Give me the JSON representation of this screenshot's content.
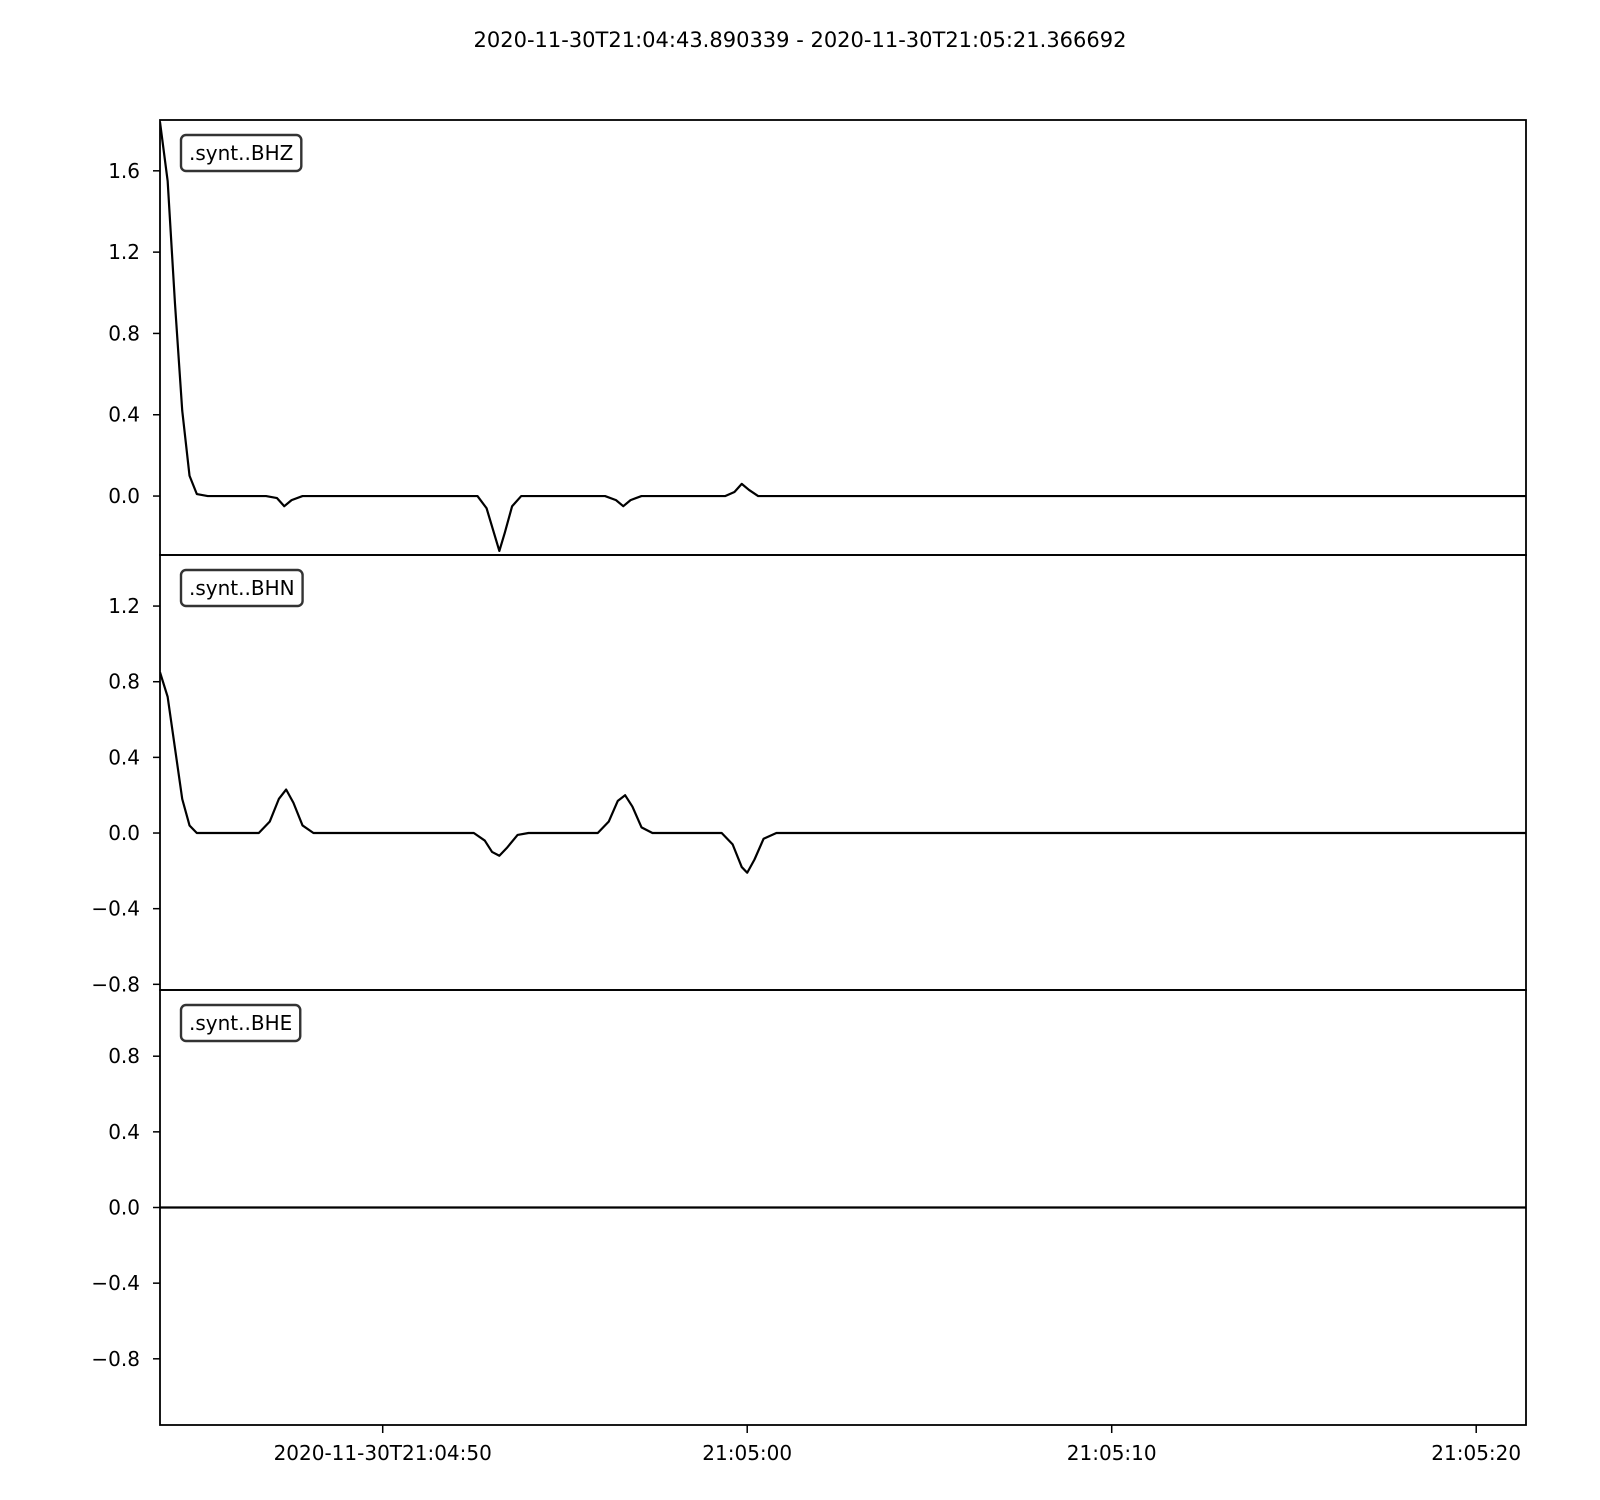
{
  "chart_data": {
    "type": "line",
    "title": "2020-11-30T21:04:43.890339  -  2020-11-30T21:05:21.366692",
    "x_start": "2020-11-30T21:04:43.890339",
    "x_end": "2020-11-30T21:05:21.366692",
    "x_ticks": [
      {
        "time": "2020-11-30T21:04:50",
        "label": "2020-11-30T21:04:50"
      },
      {
        "time": "2020-11-30T21:05:00",
        "label": "21:05:00"
      },
      {
        "time": "2020-11-30T21:05:10",
        "label": "21:05:10"
      },
      {
        "time": "2020-11-30T21:05:20",
        "label": "21:05:20"
      }
    ],
    "grid": false,
    "line_color": "#000000",
    "panels": [
      {
        "name": ".synt..BHZ",
        "ylim": [
          -0.29,
          1.85
        ],
        "y_ticks": [
          {
            "value": 0.0,
            "label": "0.0"
          },
          {
            "value": 0.4,
            "label": "0.4"
          },
          {
            "value": 0.8,
            "label": "0.8"
          },
          {
            "value": 1.2,
            "label": "1.2"
          },
          {
            "value": 1.6,
            "label": "1.6"
          }
        ],
        "points": [
          [
            "2020-11-30T21:04:43.890",
            1.84
          ],
          [
            "2020-11-30T21:04:44.100",
            1.55
          ],
          [
            "2020-11-30T21:04:44.300",
            0.95
          ],
          [
            "2020-11-30T21:04:44.500",
            0.42
          ],
          [
            "2020-11-30T21:04:44.700",
            0.1
          ],
          [
            "2020-11-30T21:04:44.900",
            0.01
          ],
          [
            "2020-11-30T21:04:45.200",
            0.0
          ],
          [
            "2020-11-30T21:04:46.800",
            0.0
          ],
          [
            "2020-11-30T21:04:47.100",
            -0.01
          ],
          [
            "2020-11-30T21:04:47.300",
            -0.05
          ],
          [
            "2020-11-30T21:04:47.500",
            -0.02
          ],
          [
            "2020-11-30T21:04:47.800",
            0.0
          ],
          [
            "2020-11-30T21:04:52.600",
            0.0
          ],
          [
            "2020-11-30T21:04:52.850",
            -0.06
          ],
          [
            "2020-11-30T21:04:53.050",
            -0.18
          ],
          [
            "2020-11-30T21:04:53.200",
            -0.27
          ],
          [
            "2020-11-30T21:04:53.350",
            -0.18
          ],
          [
            "2020-11-30T21:04:53.550",
            -0.05
          ],
          [
            "2020-11-30T21:04:53.800",
            0.0
          ],
          [
            "2020-11-30T21:04:56.100",
            0.0
          ],
          [
            "2020-11-30T21:04:56.400",
            -0.02
          ],
          [
            "2020-11-30T21:04:56.600",
            -0.05
          ],
          [
            "2020-11-30T21:04:56.800",
            -0.02
          ],
          [
            "2020-11-30T21:04:57.100",
            0.0
          ],
          [
            "2020-11-30T21:04:59.400",
            0.0
          ],
          [
            "2020-11-30T21:04:59.650",
            0.02
          ],
          [
            "2020-11-30T21:04:59.850",
            0.06
          ],
          [
            "2020-11-30T21:05:00.050",
            0.03
          ],
          [
            "2020-11-30T21:05:00.300",
            0.0
          ],
          [
            "2020-11-30T21:05:21.366",
            0.0
          ]
        ]
      },
      {
        "name": ".synt..BHN",
        "ylim": [
          -0.83,
          1.47
        ],
        "y_ticks": [
          {
            "value": -0.8,
            "label": "−0.8"
          },
          {
            "value": -0.4,
            "label": "−0.4"
          },
          {
            "value": 0.0,
            "label": "0.0"
          },
          {
            "value": 0.4,
            "label": "0.4"
          },
          {
            "value": 0.8,
            "label": "0.8"
          },
          {
            "value": 1.2,
            "label": "1.2"
          }
        ],
        "points": [
          [
            "2020-11-30T21:04:43.890",
            0.85
          ],
          [
            "2020-11-30T21:04:44.100",
            0.72
          ],
          [
            "2020-11-30T21:04:44.300",
            0.45
          ],
          [
            "2020-11-30T21:04:44.500",
            0.18
          ],
          [
            "2020-11-30T21:04:44.700",
            0.04
          ],
          [
            "2020-11-30T21:04:44.900",
            0.0
          ],
          [
            "2020-11-30T21:04:46.600",
            0.0
          ],
          [
            "2020-11-30T21:04:46.900",
            0.06
          ],
          [
            "2020-11-30T21:04:47.150",
            0.18
          ],
          [
            "2020-11-30T21:04:47.350",
            0.23
          ],
          [
            "2020-11-30T21:04:47.550",
            0.16
          ],
          [
            "2020-11-30T21:04:47.800",
            0.04
          ],
          [
            "2020-11-30T21:04:48.100",
            0.0
          ],
          [
            "2020-11-30T21:04:52.500",
            0.0
          ],
          [
            "2020-11-30T21:04:52.800",
            -0.04
          ],
          [
            "2020-11-30T21:04:53.000",
            -0.1
          ],
          [
            "2020-11-30T21:04:53.200",
            -0.12
          ],
          [
            "2020-11-30T21:04:53.400",
            -0.08
          ],
          [
            "2020-11-30T21:04:53.700",
            -0.01
          ],
          [
            "2020-11-30T21:04:54.000",
            0.0
          ],
          [
            "2020-11-30T21:04:55.900",
            0.0
          ],
          [
            "2020-11-30T21:04:56.200",
            0.06
          ],
          [
            "2020-11-30T21:04:56.450",
            0.17
          ],
          [
            "2020-11-30T21:04:56.650",
            0.2
          ],
          [
            "2020-11-30T21:04:56.850",
            0.14
          ],
          [
            "2020-11-30T21:04:57.100",
            0.03
          ],
          [
            "2020-11-30T21:04:57.400",
            0.0
          ],
          [
            "2020-11-30T21:04:59.300",
            0.0
          ],
          [
            "2020-11-30T21:04:59.600",
            -0.06
          ],
          [
            "2020-11-30T21:04:59.850",
            -0.18
          ],
          [
            "2020-11-30T21:05:00.000",
            -0.21
          ],
          [
            "2020-11-30T21:05:00.200",
            -0.14
          ],
          [
            "2020-11-30T21:05:00.450",
            -0.03
          ],
          [
            "2020-11-30T21:05:00.800",
            0.0
          ],
          [
            "2020-11-30T21:05:21.366",
            0.0
          ]
        ]
      },
      {
        "name": ".synt..BHE",
        "ylim": [
          -1.15,
          1.15
        ],
        "y_ticks": [
          {
            "value": -0.8,
            "label": "−0.8"
          },
          {
            "value": -0.4,
            "label": "−0.4"
          },
          {
            "value": 0.0,
            "label": "0.0"
          },
          {
            "value": 0.4,
            "label": "0.4"
          },
          {
            "value": 0.8,
            "label": "0.8"
          }
        ],
        "points": [
          [
            "2020-11-30T21:04:43.890",
            0.0
          ],
          [
            "2020-11-30T21:05:21.366",
            0.0
          ]
        ]
      }
    ]
  }
}
